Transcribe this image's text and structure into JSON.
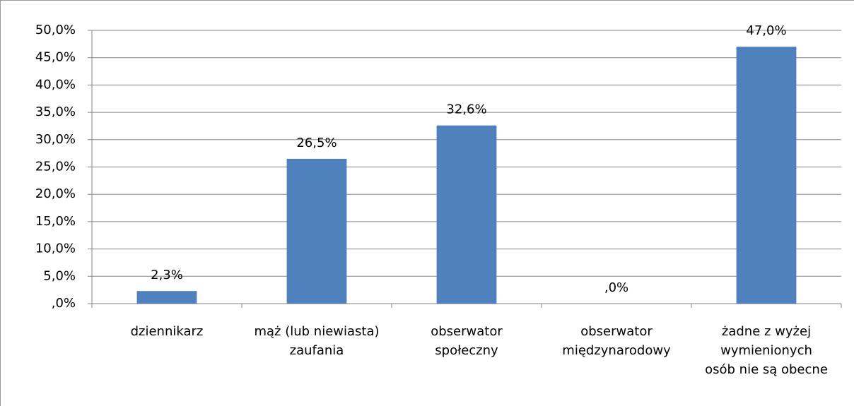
{
  "chart_data": {
    "type": "bar",
    "categories": [
      "dziennikarz",
      "mąż (lub niewiasta)\nzaufania",
      "obserwator\nspołeczny",
      "obserwator\nmiędzynarodowy",
      "żadne z wyżej\nwymienionych\nosób nie są obecne"
    ],
    "values": [
      2.3,
      26.5,
      32.6,
      0,
      47.0
    ],
    "value_labels": [
      "2,3%",
      "26,5%",
      "32,6%",
      ",0%",
      "47,0%"
    ],
    "color": "#4f81bd",
    "ylim": [
      0,
      50
    ],
    "yticks": [
      {
        "value": 0,
        "label": ",0%"
      },
      {
        "value": 5,
        "label": "5,0%"
      },
      {
        "value": 10,
        "label": "10,0%"
      },
      {
        "value": 15,
        "label": "15,0%"
      },
      {
        "value": 20,
        "label": "20,0%"
      },
      {
        "value": 25,
        "label": "25,0%"
      },
      {
        "value": 30,
        "label": "30,0%"
      },
      {
        "value": 35,
        "label": "35,0%"
      },
      {
        "value": 40,
        "label": "40,0%"
      },
      {
        "value": 45,
        "label": "45,0%"
      },
      {
        "value": 50,
        "label": "50,0%"
      }
    ],
    "grid": true
  }
}
